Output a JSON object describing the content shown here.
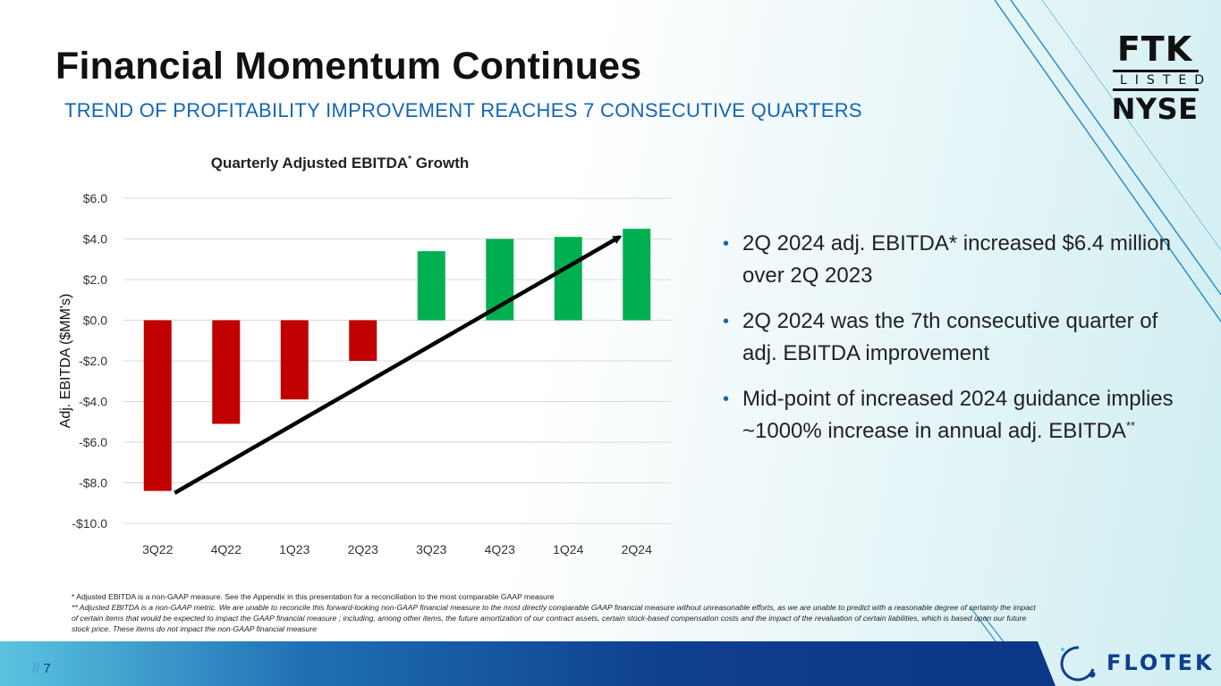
{
  "slide": {
    "title": "Financial Momentum Continues",
    "subtitle": "TREND OF PROFITABILITY IMPROVEMENT REACHES 7 CONSECUTIVE QUARTERS",
    "page_number": "7",
    "page_prefix": "//"
  },
  "logos": {
    "ftk": "FTK",
    "listed": "LISTED",
    "nyse": "NYSE",
    "flotek": "FLOTEK"
  },
  "chart_data": {
    "type": "bar",
    "title": "Quarterly Adjusted EBITDA",
    "title_superscript": "*",
    "title_suffix": " Growth",
    "xlabel": "",
    "ylabel": "Adj. EBITDA ($MM's)",
    "categories": [
      "3Q22",
      "4Q22",
      "1Q23",
      "2Q23",
      "3Q23",
      "4Q23",
      "1Q24",
      "2Q24"
    ],
    "values": [
      -8.4,
      -5.1,
      -3.9,
      -2.0,
      3.4,
      4.0,
      4.1,
      4.5
    ],
    "ylim": [
      -10,
      6
    ],
    "yticks": [
      6,
      4,
      2,
      0,
      -2,
      -4,
      -6,
      -8,
      -10
    ],
    "ytick_labels": [
      "$6.0",
      "$4.0",
      "$2.0",
      "$0.0",
      "-$2.0",
      "-$4.0",
      "-$6.0",
      "-$8.0",
      "-$10.0"
    ],
    "grid": true,
    "colors": {
      "negative": "#c00000",
      "positive": "#00b050",
      "trend": "#000000",
      "grid": "#d9d9d9"
    },
    "trend_arrow": {
      "from": {
        "category": "3Q22",
        "value": -8.5
      },
      "to": {
        "category": "2Q24",
        "value": 4.1
      }
    }
  },
  "bullets": [
    {
      "text": "2Q 2024 adj. EBITDA* increased $6.4 million over 2Q 2023",
      "sup": ""
    },
    {
      "text": "2Q 2024 was the 7th consecutive quarter of adj. EBITDA improvement",
      "sup": ""
    },
    {
      "text": "Mid-point of increased 2024 guidance implies ~1000% increase in annual adj. EBITDA",
      "sup": "**"
    }
  ],
  "footnotes": {
    "note1": "*  Adjusted EBITDA is a non-GAAP measure.  See the Appendix in this presentation for a reconciliation to the most comparable GAAP measure",
    "note2": "** Adjusted EBITDA is a non-GAAP metric. We are unable to reconcile this forward-looking non-GAAP financial measure to the most directly comparable GAAP financial measure without unreasonable efforts, as we are unable to predict with a reasonable degree of certainty the impact of certain items that would be expected to impact the GAAP financial measure ; including, among other items, the future amortization of our contract assets, certain stock-based compensation costs and the impact of the revaluation of certain liabilities, which is based upon our future stock price. These items do not impact the non-GAAP financial measure"
  },
  "colors": {
    "title": "#111111",
    "subtitle": "#1466b4",
    "bullet_dot": "#1e63b0",
    "brand": "#0e3f8e"
  }
}
